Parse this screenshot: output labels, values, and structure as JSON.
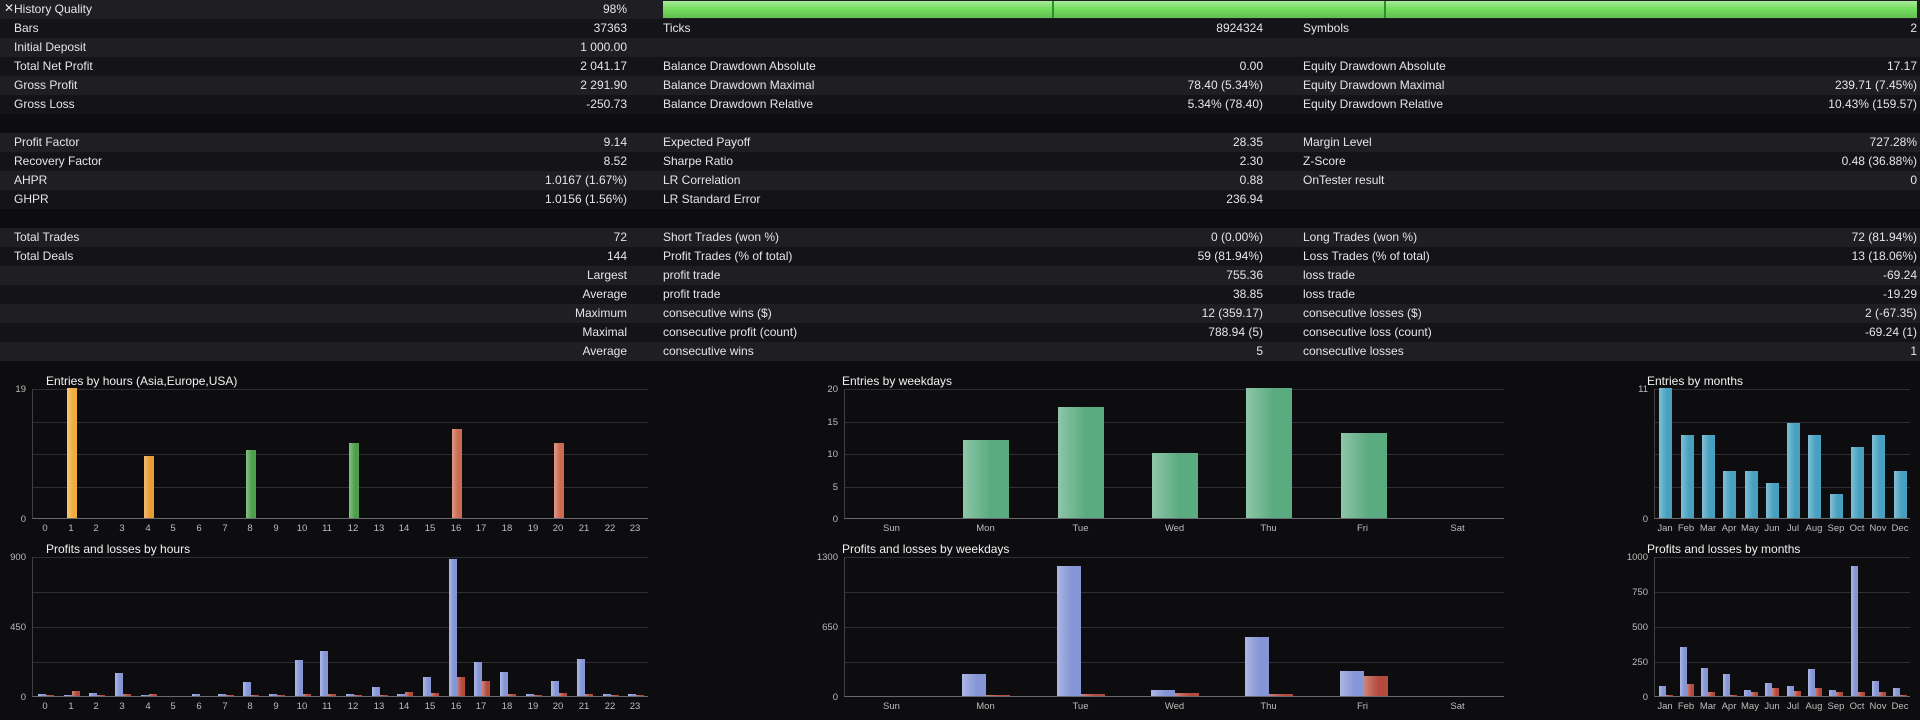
{
  "window": {
    "close_icon": "✕"
  },
  "stats": {
    "quality_ticks": [
      31,
      57.5
    ],
    "rows": [
      {
        "c1l": "History Quality",
        "c1v": "98%",
        "quality": true,
        "quality_color": "#74dd5e"
      },
      {
        "c1l": "Bars",
        "c1v": "37363",
        "c2l": "Ticks",
        "c2v": "8924324",
        "c3l": "Symbols",
        "c3v": "2"
      },
      {
        "c1l": "Initial Deposit",
        "c1v": "1 000.00"
      },
      {
        "c1l": "Total Net Profit",
        "c1v": "2 041.17",
        "c2l": "Balance Drawdown Absolute",
        "c2v": "0.00",
        "c3l": "Equity Drawdown Absolute",
        "c3v": "17.17"
      },
      {
        "c1l": "Gross Profit",
        "c1v": "2 291.90",
        "c2l": "Balance Drawdown Maximal",
        "c2v": "78.40 (5.34%)",
        "c3l": "Equity Drawdown Maximal",
        "c3v": "239.71 (7.45%)"
      },
      {
        "c1l": "Gross Loss",
        "c1v": "-250.73",
        "c2l": "Balance Drawdown Relative",
        "c2v": "5.34% (78.40)",
        "c3l": "Equity Drawdown Relative",
        "c3v": "10.43% (159.57)"
      },
      {
        "blank": true
      },
      {
        "c1l": "Profit Factor",
        "c1v": "9.14",
        "c2l": "Expected Payoff",
        "c2v": "28.35",
        "c3l": "Margin Level",
        "c3v": "727.28%"
      },
      {
        "c1l": "Recovery Factor",
        "c1v": "8.52",
        "c2l": "Sharpe Ratio",
        "c2v": "2.30",
        "c3l": "Z-Score",
        "c3v": "0.48 (36.88%)"
      },
      {
        "c1l": "AHPR",
        "c1v": "1.0167 (1.67%)",
        "c2l": "LR Correlation",
        "c2v": "0.88",
        "c3l": "OnTester result",
        "c3v": "0"
      },
      {
        "c1l": "GHPR",
        "c1v": "1.0156 (1.56%)",
        "c2l": "LR Standard Error",
        "c2v": "236.94"
      },
      {
        "blank": true
      },
      {
        "c1l": "Total Trades",
        "c1v": "72",
        "c2l": "Short Trades (won %)",
        "c2v": "0 (0.00%)",
        "c3l": "Long Trades (won %)",
        "c3v": "72 (81.94%)"
      },
      {
        "c1l": "Total Deals",
        "c1v": "144",
        "c2l": "Profit Trades (% of total)",
        "c2v": "59 (81.94%)",
        "c3l": "Loss Trades (% of total)",
        "c3v": "13 (18.06%)"
      },
      {
        "c1v": "Largest",
        "c2l": "profit trade",
        "c2v": "755.36",
        "c3l": "loss trade",
        "c3v": "-69.24"
      },
      {
        "c1v": "Average",
        "c2l": "profit trade",
        "c2v": "38.85",
        "c3l": "loss trade",
        "c3v": "-19.29"
      },
      {
        "c1v": "Maximum",
        "c2l": "consecutive wins ($)",
        "c2v": "12 (359.17)",
        "c3l": "consecutive losses ($)",
        "c3v": "2 (-67.35)"
      },
      {
        "c1v": "Maximal",
        "c2l": "consecutive profit (count)",
        "c2v": "788.94 (5)",
        "c3l": "consecutive loss (count)",
        "c3v": "-69.24 (1)"
      },
      {
        "c1v": "Average",
        "c2l": "consecutive wins",
        "c2v": "5",
        "c3l": "consecutive losses",
        "c3v": "1"
      }
    ]
  },
  "chart_data": [
    {
      "type": "bar",
      "title": "Entries by hours (Asia,Europe,USA)",
      "categories": [
        "0",
        "1",
        "2",
        "3",
        "4",
        "5",
        "6",
        "7",
        "8",
        "9",
        "10",
        "11",
        "12",
        "13",
        "14",
        "15",
        "16",
        "17",
        "18",
        "19",
        "20",
        "21",
        "22",
        "23"
      ],
      "values": [
        0,
        19,
        0,
        0,
        9,
        0,
        0,
        0,
        10,
        0,
        0,
        0,
        11,
        0,
        0,
        0,
        13,
        0,
        0,
        0,
        11,
        0,
        0,
        0
      ],
      "bar_colors": [
        "",
        "#f0ac3c",
        "",
        "",
        "#e89c33",
        "",
        "",
        "",
        "#4da04b",
        "",
        "",
        "",
        "#4da04b",
        "",
        "",
        "",
        "#cd6a52",
        "",
        "",
        "",
        "#cd6a52",
        "",
        "",
        ""
      ],
      "ylim": [
        0,
        19
      ],
      "yticks": [
        0,
        19
      ],
      "grid": true,
      "legend": "none"
    },
    {
      "type": "bar",
      "title": "Entries by weekdays",
      "categories": [
        "Sun",
        "Mon",
        "Tue",
        "Wed",
        "Thu",
        "Fri",
        "Sat"
      ],
      "values": [
        0,
        12,
        17,
        10,
        20,
        13,
        0
      ],
      "color": "#5aab80",
      "ylim": [
        0,
        20
      ],
      "yticks": [
        0,
        5,
        10,
        15,
        20
      ],
      "grid": true,
      "legend": "none"
    },
    {
      "type": "bar",
      "title": "Entries by months",
      "categories": [
        "Jan",
        "Feb",
        "Mar",
        "Apr",
        "May",
        "Jun",
        "Jul",
        "Aug",
        "Sep",
        "Oct",
        "Nov",
        "Dec"
      ],
      "values": [
        11,
        7,
        7,
        4,
        4,
        3,
        8,
        7,
        2,
        6,
        7,
        4
      ],
      "color": "#48a0c0",
      "ylim": [
        0,
        11
      ],
      "yticks": [
        0,
        11
      ],
      "grid": true,
      "legend": "none"
    },
    {
      "type": "bar",
      "title": "Profits and losses by hours",
      "categories": [
        "0",
        "1",
        "2",
        "3",
        "4",
        "5",
        "6",
        "7",
        "8",
        "9",
        "10",
        "11",
        "12",
        "13",
        "14",
        "15",
        "16",
        "17",
        "18",
        "19",
        "20",
        "21",
        "22",
        "23"
      ],
      "series": [
        {
          "name": "profit",
          "color": "#8695d6",
          "values": [
            10,
            5,
            20,
            150,
            5,
            0,
            10,
            10,
            90,
            15,
            230,
            290,
            15,
            60,
            10,
            120,
            880,
            220,
            155,
            15,
            95,
            235,
            15,
            10
          ]
        },
        {
          "name": "loss",
          "color": "#b44a3e",
          "values": [
            5,
            30,
            5,
            10,
            15,
            0,
            0,
            5,
            5,
            5,
            10,
            15,
            5,
            5,
            25,
            20,
            120,
            95,
            10,
            5,
            20,
            10,
            5,
            5
          ]
        }
      ],
      "ylim": [
        0,
        900
      ],
      "yticks": [
        0,
        450,
        900
      ],
      "grid": true,
      "legend": "none"
    },
    {
      "type": "bar",
      "title": "Profits and losses by weekdays",
      "categories": [
        "Sun",
        "Mon",
        "Tue",
        "Wed",
        "Thu",
        "Fri",
        "Sat"
      ],
      "series": [
        {
          "name": "profit",
          "color": "#8695d6",
          "values": [
            0,
            200,
            1210,
            60,
            545,
            230,
            0
          ]
        },
        {
          "name": "loss",
          "color": "#b44a3e",
          "values": [
            0,
            10,
            15,
            25,
            20,
            185,
            0
          ]
        }
      ],
      "ylim": [
        0,
        1300
      ],
      "yticks": [
        0,
        650,
        1300
      ],
      "grid": true,
      "legend": "none"
    },
    {
      "type": "bar",
      "title": "Profits and losses by months",
      "categories": [
        "Jan",
        "Feb",
        "Mar",
        "Apr",
        "May",
        "Jun",
        "Jul",
        "Aug",
        "Sep",
        "Oct",
        "Nov",
        "Dec"
      ],
      "series": [
        {
          "name": "profit",
          "color": "#8695d6",
          "values": [
            70,
            350,
            200,
            160,
            40,
            90,
            70,
            190,
            40,
            930,
            110,
            60
          ]
        },
        {
          "name": "loss",
          "color": "#b44a3e",
          "values": [
            5,
            85,
            25,
            10,
            25,
            60,
            35,
            60,
            25,
            25,
            25,
            10
          ]
        }
      ],
      "ylim": [
        0,
        1000
      ],
      "yticks": [
        0,
        250,
        500,
        750,
        1000
      ],
      "grid": true,
      "legend": "none"
    }
  ]
}
